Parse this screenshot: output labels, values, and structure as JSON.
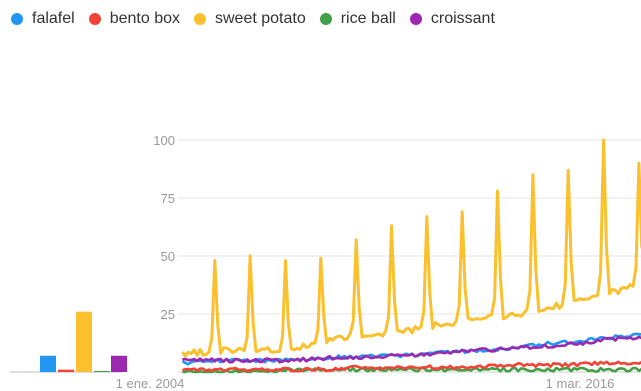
{
  "legend": [
    {
      "name": "falafel",
      "color": "#2196f3"
    },
    {
      "name": "bento box",
      "color": "#f44336"
    },
    {
      "name": "sweet potato",
      "color": "#fbc02d"
    },
    {
      "name": "rice ball",
      "color": "#43a047"
    },
    {
      "name": "croissant",
      "color": "#9c27b0"
    }
  ],
  "chart_data": [
    {
      "type": "bar",
      "title": "",
      "categories": [
        "falafel",
        "bento box",
        "sweet potato",
        "rice ball",
        "croissant"
      ],
      "values": [
        7,
        1,
        26,
        0,
        7
      ],
      "ylim": [
        0,
        100
      ]
    },
    {
      "type": "line",
      "title": "",
      "xlabel": "",
      "ylabel": "",
      "ylim": [
        0,
        100
      ],
      "yticks": [
        25,
        50,
        75,
        100
      ],
      "grid": true,
      "xtick_labels": [
        {
          "label": "1 ene. 2004",
          "x": "2004-01"
        },
        {
          "label": "1 mar. 2016",
          "x": "2016-03"
        }
      ],
      "x_start": "2004-01",
      "x_end": "2017-12",
      "series": [
        {
          "name": "sweet potato",
          "color": "#fbc02d",
          "baseline": [
            8,
            8,
            9,
            9,
            9,
            14,
            16,
            17,
            20,
            22,
            24,
            27,
            30,
            34,
            38
          ],
          "peaks": [
            {
              "year": 2004,
              "value": 10
            },
            {
              "year": 2005,
              "value": 48
            },
            {
              "year": 2006,
              "value": 50
            },
            {
              "year": 2007,
              "value": 48
            },
            {
              "year": 2008,
              "value": 49
            },
            {
              "year": 2009,
              "value": 57
            },
            {
              "year": 2010,
              "value": 63
            },
            {
              "year": 2011,
              "value": 67
            },
            {
              "year": 2012,
              "value": 69
            },
            {
              "year": 2013,
              "value": 78
            },
            {
              "year": 2014,
              "value": 85
            },
            {
              "year": 2015,
              "value": 87
            },
            {
              "year": 2016,
              "value": 100
            },
            {
              "year": 2017,
              "value": 90
            }
          ]
        },
        {
          "name": "falafel",
          "color": "#2196f3",
          "baseline": [
            4,
            4,
            5,
            5,
            5,
            6,
            7,
            7,
            8,
            9,
            10,
            12,
            13,
            15,
            16
          ]
        },
        {
          "name": "croissant",
          "color": "#9c27b0",
          "baseline": [
            5,
            5,
            5,
            5,
            5,
            6,
            6,
            7,
            8,
            9,
            10,
            11,
            12,
            14,
            15
          ]
        },
        {
          "name": "bento box",
          "color": "#f44336",
          "baseline": [
            1,
            1,
            1,
            1,
            1,
            1,
            2,
            2,
            2,
            2,
            3,
            3,
            3,
            4,
            4
          ]
        },
        {
          "name": "rice ball",
          "color": "#43a047",
          "baseline": [
            0,
            0,
            0,
            0,
            1,
            1,
            1,
            1,
            1,
            1,
            1,
            1,
            1,
            1,
            1
          ]
        }
      ]
    }
  ]
}
